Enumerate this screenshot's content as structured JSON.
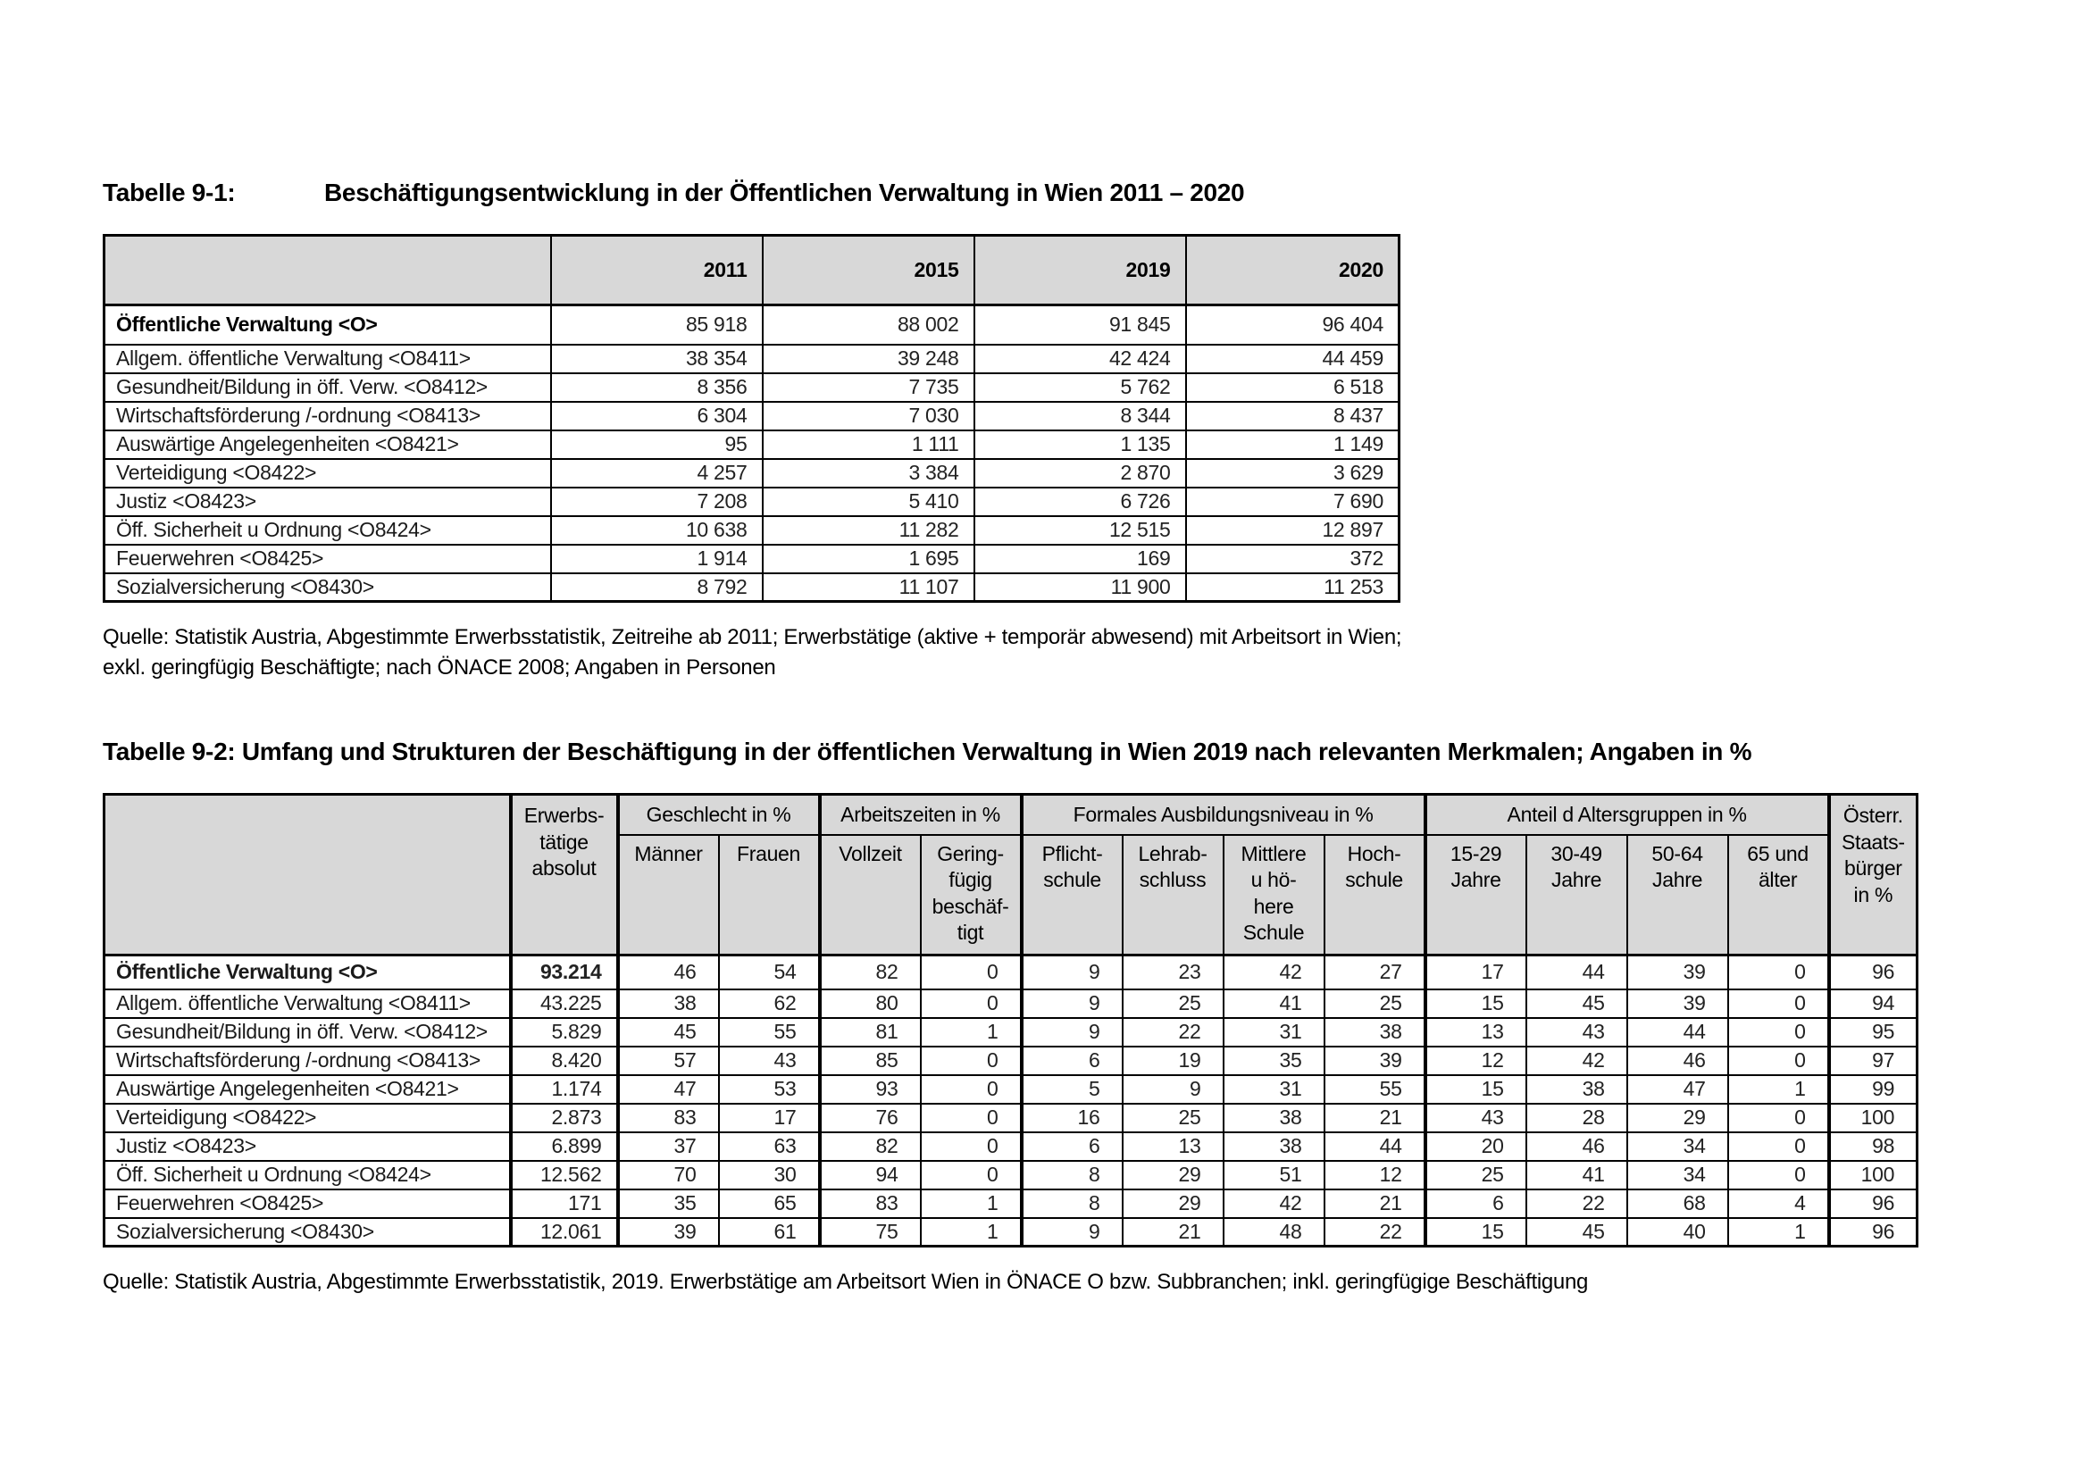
{
  "page": {
    "title1_label": "Tabelle 9-1:",
    "title1_text": "Beschäftigungsentwicklung in der Öffentlichen Verwaltung in Wien 2011 – 2020",
    "source1": "Quelle: Statistik Austria, Abgestimmte Erwerbsstatistik, Zeitreihe ab 2011; Erwerbstätige (aktive + temporär abwesend) mit Arbeitsort in Wien;\nexkl. geringfügig Beschäftigte; nach ÖNACE 2008; Angaben in Personen",
    "title2": "Tabelle 9-2: Umfang und Strukturen der Beschäftigung in der öffentlichen Verwaltung in Wien 2019 nach relevanten Merkmalen; Angaben in %",
    "source2": "Quelle: Statistik Austria, Abgestimmte Erwerbsstatistik, 2019. Erwerbstätige am Arbeitsort Wien in ÖNACE O bzw. Subbranchen; inkl. geringfügige Beschäftigung"
  },
  "table1": {
    "col_headers": [
      "2011",
      "2015",
      "2019",
      "2020"
    ],
    "rows": [
      {
        "label": "Öffentliche Verwaltung <O>",
        "bold": true,
        "values": [
          "85 918",
          "88 002",
          "91 845",
          "96 404"
        ]
      },
      {
        "label": "Allgem. öffentliche Verwaltung <O8411>",
        "bold": false,
        "values": [
          "38 354",
          "39 248",
          "42 424",
          "44 459"
        ]
      },
      {
        "label": "Gesundheit/Bildung in öff. Verw. <O8412>",
        "bold": false,
        "values": [
          "8 356",
          "7 735",
          "5 762",
          "6 518"
        ]
      },
      {
        "label": "Wirtschaftsförderung /-ordnung <O8413>",
        "bold": false,
        "values": [
          "6 304",
          "7 030",
          "8 344",
          "8 437"
        ]
      },
      {
        "label": "Auswärtige Angelegenheiten <O8421>",
        "bold": false,
        "values": [
          "95",
          "1 111",
          "1 135",
          "1 149"
        ]
      },
      {
        "label": "Verteidigung <O8422>",
        "bold": false,
        "values": [
          "4 257",
          "3 384",
          "2 870",
          "3 629"
        ]
      },
      {
        "label": "Justiz <O8423>",
        "bold": false,
        "values": [
          "7 208",
          "5 410",
          "6 726",
          "7 690"
        ]
      },
      {
        "label": "Öff. Sicherheit u Ordnung <O8424>",
        "bold": false,
        "values": [
          "10 638",
          "11 282",
          "12 515",
          "12 897"
        ]
      },
      {
        "label": "Feuerwehren <O8425>",
        "bold": false,
        "values": [
          "1 914",
          "1 695",
          "169",
          "372"
        ]
      },
      {
        "label": "Sozialversicherung <O8430>",
        "bold": false,
        "values": [
          "8 792",
          "11 107",
          "11 900",
          "11 253"
        ]
      }
    ]
  },
  "table2": {
    "absolut_header": "Erwerbs-\ntätige\nabsolut",
    "groups": [
      {
        "label": "Geschlecht in %",
        "span": 2
      },
      {
        "label": "Arbeitszeiten in %",
        "span": 2
      },
      {
        "label": "Formales Ausbildungsniveau in %",
        "span": 4
      },
      {
        "label": "Anteil d Altersgruppen in %",
        "span": 4
      }
    ],
    "subheaders": [
      "Männer",
      "Frauen",
      "Vollzeit",
      "Gering-\nfügig\nbeschäf-\ntigt",
      "Pflicht-\nschule",
      "Lehrab-\nschluss",
      "Mittlere\nu hö-\nhere\nSchule",
      "Hoch-\nschule",
      "15-29\nJahre",
      "30-49\nJahre",
      "50-64\nJahre",
      "65 und\nälter"
    ],
    "oesterr_header": "Österr.\nStaats-\nbürger\nin %",
    "rows": [
      {
        "label": "Öffentliche Verwaltung <O>",
        "bold": true,
        "absolut": "93.214",
        "values": [
          46,
          54,
          82,
          0,
          9,
          23,
          42,
          27,
          17,
          44,
          39,
          0
        ],
        "staatsbuerger": 96
      },
      {
        "label": "Allgem. öffentliche Verwaltung <O8411>",
        "bold": false,
        "absolut": "43.225",
        "values": [
          38,
          62,
          80,
          0,
          9,
          25,
          41,
          25,
          15,
          45,
          39,
          0
        ],
        "staatsbuerger": 94
      },
      {
        "label": "Gesundheit/Bildung in öff. Verw. <O8412>",
        "bold": false,
        "absolut": "5.829",
        "values": [
          45,
          55,
          81,
          1,
          9,
          22,
          31,
          38,
          13,
          43,
          44,
          0
        ],
        "staatsbuerger": 95
      },
      {
        "label": "Wirtschaftsförderung /-ordnung <O8413>",
        "bold": false,
        "absolut": "8.420",
        "values": [
          57,
          43,
          85,
          0,
          6,
          19,
          35,
          39,
          12,
          42,
          46,
          0
        ],
        "staatsbuerger": 97
      },
      {
        "label": "Auswärtige Angelegenheiten <O8421>",
        "bold": false,
        "absolut": "1.174",
        "values": [
          47,
          53,
          93,
          0,
          5,
          9,
          31,
          55,
          15,
          38,
          47,
          1
        ],
        "staatsbuerger": 99
      },
      {
        "label": "Verteidigung <O8422>",
        "bold": false,
        "absolut": "2.873",
        "values": [
          83,
          17,
          76,
          0,
          16,
          25,
          38,
          21,
          43,
          28,
          29,
          0
        ],
        "staatsbuerger": 100
      },
      {
        "label": "Justiz <O8423>",
        "bold": false,
        "absolut": "6.899",
        "values": [
          37,
          63,
          82,
          0,
          6,
          13,
          38,
          44,
          20,
          46,
          34,
          0
        ],
        "staatsbuerger": 98
      },
      {
        "label": "Öff. Sicherheit u Ordnung <O8424>",
        "bold": false,
        "absolut": "12.562",
        "values": [
          70,
          30,
          94,
          0,
          8,
          29,
          51,
          12,
          25,
          41,
          34,
          0
        ],
        "staatsbuerger": 100
      },
      {
        "label": "Feuerwehren <O8425>",
        "bold": false,
        "absolut": "171",
        "values": [
          35,
          65,
          83,
          1,
          8,
          29,
          42,
          21,
          6,
          22,
          68,
          4
        ],
        "staatsbuerger": 96
      },
      {
        "label": "Sozialversicherung <O8430>",
        "bold": false,
        "absolut": "12.061",
        "values": [
          39,
          61,
          75,
          1,
          9,
          21,
          48,
          22,
          15,
          45,
          40,
          1
        ],
        "staatsbuerger": 96
      }
    ]
  }
}
